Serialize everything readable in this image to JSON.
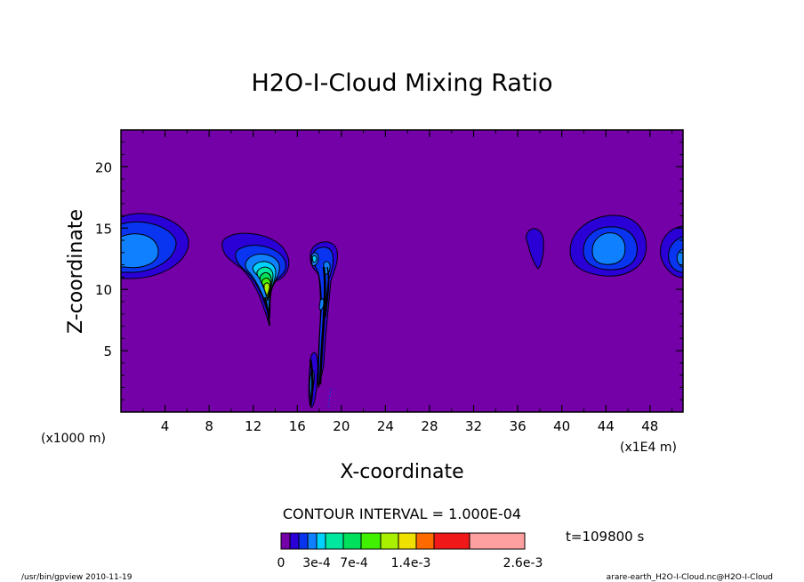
{
  "chart_data": {
    "type": "contour",
    "title": "H2O-I-Cloud Mixing Ratio",
    "xlabel": "X-coordinate",
    "ylabel": "Z-coordinate",
    "x_unit_left": "(x1000 m)",
    "x_unit_right": "(x1E4 m)",
    "xlim": [
      0,
      51
    ],
    "ylim": [
      0,
      23
    ],
    "x_ticks": [
      4,
      8,
      12,
      16,
      20,
      24,
      28,
      32,
      36,
      40,
      44,
      48
    ],
    "y_ticks": [
      5,
      10,
      15,
      20
    ],
    "contour_interval_text": "CONTOUR INTERVAL = 1.000E-04",
    "time_text": "t=109800 s",
    "colorbar": {
      "colors": [
        "#7400a8",
        "#2a00d6",
        "#0a35f0",
        "#0f80ff",
        "#00d2ff",
        "#00e8a0",
        "#00e05c",
        "#40f000",
        "#a8f000",
        "#f0e000",
        "#ff6a00",
        "#f01818",
        "#ffa0a0"
      ],
      "labels": [
        "0",
        "3e-4",
        "7e-4",
        "1.4e-3",
        "2.6e-3"
      ]
    },
    "background_level": "#7400a8",
    "features": [
      {
        "x": 2,
        "z": 13.5,
        "max_level": 3
      },
      {
        "x": 13.5,
        "z": 11.5,
        "max_level": 8
      },
      {
        "x": 18.5,
        "z": 11.5,
        "max_level": 4
      },
      {
        "x": 38,
        "z": 13.5,
        "max_level": 2
      },
      {
        "x": 44.5,
        "z": 13,
        "max_level": 3
      },
      {
        "x": 51,
        "z": 12.5,
        "max_level": 3
      }
    ]
  },
  "footer": {
    "left": "/usr/bin/gpview   2010-11-19",
    "right": "arare-earth_H2O-I-Cloud.nc@H2O-I-Cloud"
  }
}
